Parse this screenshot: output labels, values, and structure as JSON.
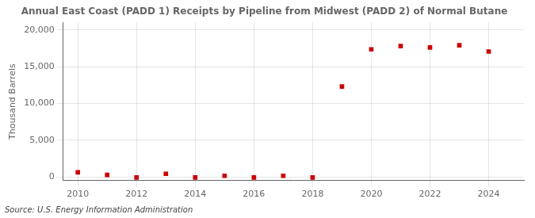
{
  "chart_data": {
    "type": "scatter",
    "title": "Annual East Coast (PADD 1) Receipts by Pipeline from Midwest (PADD 2) of Normal Butane",
    "ylabel": "Thousand Barrels",
    "annotation": "Source: U.S. Energy Information Administration",
    "x": [
      2010,
      2011,
      2012,
      2013,
      2014,
      2015,
      2016,
      2017,
      2018,
      2019,
      2020,
      2021,
      2022,
      2023,
      2024
    ],
    "values": [
      620,
      280,
      -80,
      420,
      -80,
      150,
      -80,
      150,
      -80,
      12300,
      17350,
      17800,
      17600,
      17900,
      17050
    ],
    "color": "#cc0000",
    "marker": "square",
    "xlim": [
      2009.5,
      2025.2
    ],
    "ylim": [
      -500,
      21000
    ],
    "xticks": [
      2010,
      2012,
      2014,
      2016,
      2018,
      2020,
      2022,
      2024
    ],
    "yticks": [
      0,
      {
        "value": 5000,
        "label": "5,000"
      },
      {
        "value": 10000,
        "label": "10,000"
      },
      {
        "value": 15000,
        "label": "15,000"
      },
      {
        "value": 20000,
        "label": "20,000"
      }
    ],
    "grid": true
  }
}
